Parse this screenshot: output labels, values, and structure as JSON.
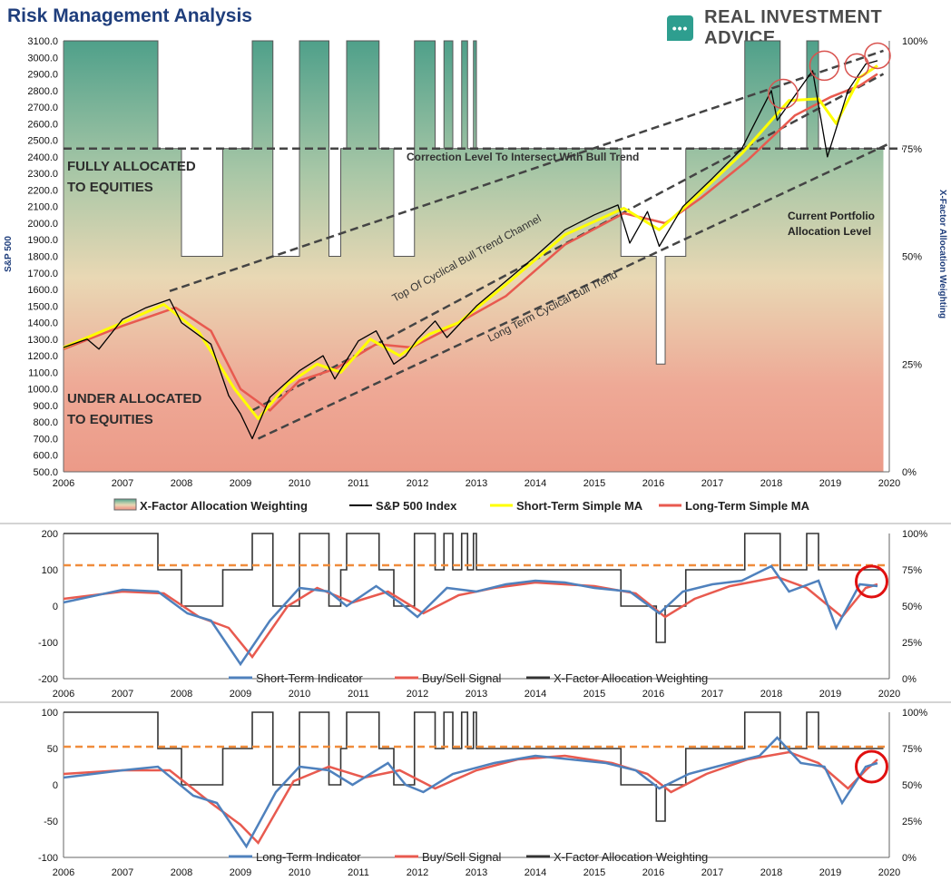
{
  "header": {
    "title": "Risk Management Analysis",
    "brand": "REAL INVESTMENT ADVICE",
    "brand_icon": "chat-bubble-icon"
  },
  "chart_data": [
    {
      "type": "line",
      "title": "Risk Management Analysis",
      "ylabel": "S&P 500",
      "y2label": "X-Factor Allocation Weighting",
      "xlim": [
        2006,
        2020
      ],
      "ylim": [
        500,
        3100
      ],
      "y2lim": [
        0,
        100
      ],
      "x_ticks": [
        "2006",
        "2007",
        "2008",
        "2009",
        "2010",
        "2011",
        "2012",
        "2013",
        "2014",
        "2015",
        "2016",
        "2017",
        "2018",
        "2019",
        "2020"
      ],
      "y_ticks": [
        "500.0",
        "600.0",
        "700.0",
        "800.0",
        "900.0",
        "1000.0",
        "1100.0",
        "1200.0",
        "1300.0",
        "1400.0",
        "1500.0",
        "1600.0",
        "1700.0",
        "1800.0",
        "1900.0",
        "2000.0",
        "2100.0",
        "2200.0",
        "2300.0",
        "2400.0",
        "2500.0",
        "2600.0",
        "2700.0",
        "2800.0",
        "2900.0",
        "3000.0",
        "3100.0"
      ],
      "y2_ticks": [
        "0%",
        "25%",
        "50%",
        "75%",
        "100%"
      ],
      "legend_position": "bottom",
      "legend": [
        "X-Factor Allocation Weighting",
        "S&P 500 Index",
        "Short-Term Simple MA",
        "Long-Term Simple MA"
      ],
      "annotations": [
        "FULLY ALLOCATED",
        "TO EQUITIES",
        "UNDER ALLOCATED",
        "TO EQUITIES",
        "Correction Level To Intersect With Bull Trend",
        "Top Of Cyclical Bull Trend Channel",
        "Long Term Cyclical Bull Trend",
        "Current Portfolio",
        "Allocation Level"
      ],
      "allocation_steps": [
        [
          2006,
          100
        ],
        [
          2007.6,
          75
        ],
        [
          2008,
          50
        ],
        [
          2008.7,
          75
        ],
        [
          2009.2,
          100
        ],
        [
          2009.4,
          100
        ],
        [
          2009.55,
          50
        ],
        [
          2010,
          100
        ],
        [
          2010.5,
          50
        ],
        [
          2010.7,
          75
        ],
        [
          2010.8,
          100
        ],
        [
          2011.35,
          75
        ],
        [
          2011.6,
          50
        ],
        [
          2011.95,
          100
        ],
        [
          2012.3,
          75
        ],
        [
          2012.45,
          100
        ],
        [
          2012.6,
          75
        ],
        [
          2012.75,
          100
        ],
        [
          2012.85,
          75
        ],
        [
          2012.95,
          100
        ],
        [
          2013,
          75
        ],
        [
          2015.45,
          50
        ],
        [
          2016.05,
          25
        ],
        [
          2016.2,
          50
        ],
        [
          2016.55,
          75
        ],
        [
          2017.55,
          100
        ],
        [
          2018.15,
          75
        ],
        [
          2018.6,
          100
        ],
        [
          2018.8,
          75
        ],
        [
          2019.9,
          75
        ]
      ],
      "series": [
        {
          "name": "S&P 500 Index",
          "color": "#000000",
          "values": [
            [
              2006,
              1250
            ],
            [
              2006.4,
              1300
            ],
            [
              2006.6,
              1240
            ],
            [
              2007,
              1420
            ],
            [
              2007.4,
              1490
            ],
            [
              2007.8,
              1540
            ],
            [
              2008,
              1400
            ],
            [
              2008.5,
              1270
            ],
            [
              2008.8,
              960
            ],
            [
              2009.0,
              850
            ],
            [
              2009.2,
              700
            ],
            [
              2009.5,
              950
            ],
            [
              2010,
              1110
            ],
            [
              2010.4,
              1200
            ],
            [
              2010.6,
              1060
            ],
            [
              2011,
              1290
            ],
            [
              2011.3,
              1350
            ],
            [
              2011.6,
              1150
            ],
            [
              2011.8,
              1200
            ],
            [
              2012,
              1300
            ],
            [
              2012.3,
              1410
            ],
            [
              2012.5,
              1310
            ],
            [
              2013,
              1500
            ],
            [
              2013.5,
              1650
            ],
            [
              2014,
              1800
            ],
            [
              2014.5,
              1960
            ],
            [
              2015,
              2050
            ],
            [
              2015.4,
              2110
            ],
            [
              2015.6,
              1880
            ],
            [
              2015.9,
              2070
            ],
            [
              2016.1,
              1860
            ],
            [
              2016.5,
              2100
            ],
            [
              2017,
              2270
            ],
            [
              2017.5,
              2450
            ],
            [
              2018,
              2800
            ],
            [
              2018.1,
              2620
            ],
            [
              2018.7,
              2920
            ],
            [
              2018.95,
              2400
            ],
            [
              2019.3,
              2800
            ],
            [
              2019.6,
              2960
            ],
            [
              2019.8,
              2980
            ]
          ]
        },
        {
          "name": "Short-Term Simple MA",
          "color": "#ffff00",
          "values": [
            [
              2006,
              1250
            ],
            [
              2007,
              1400
            ],
            [
              2007.7,
              1510
            ],
            [
              2008.3,
              1340
            ],
            [
              2008.9,
              1000
            ],
            [
              2009.3,
              820
            ],
            [
              2009.8,
              1030
            ],
            [
              2010.3,
              1150
            ],
            [
              2010.7,
              1100
            ],
            [
              2011.2,
              1300
            ],
            [
              2011.7,
              1200
            ],
            [
              2012.2,
              1330
            ],
            [
              2012.7,
              1400
            ],
            [
              2013.5,
              1630
            ],
            [
              2014.5,
              1930
            ],
            [
              2015.5,
              2090
            ],
            [
              2016.1,
              1960
            ],
            [
              2016.7,
              2150
            ],
            [
              2017.5,
              2420
            ],
            [
              2018.3,
              2740
            ],
            [
              2018.8,
              2750
            ],
            [
              2019.1,
              2600
            ],
            [
              2019.5,
              2880
            ],
            [
              2019.8,
              2950
            ]
          ]
        },
        {
          "name": "Long-Term Simple MA",
          "color": "#e85a4f",
          "values": [
            [
              2006,
              1240
            ],
            [
              2007,
              1380
            ],
            [
              2007.9,
              1490
            ],
            [
              2008.5,
              1350
            ],
            [
              2009,
              1000
            ],
            [
              2009.5,
              870
            ],
            [
              2010,
              1050
            ],
            [
              2010.6,
              1120
            ],
            [
              2011.3,
              1270
            ],
            [
              2011.9,
              1250
            ],
            [
              2012.5,
              1360
            ],
            [
              2013.5,
              1560
            ],
            [
              2014.5,
              1870
            ],
            [
              2015.5,
              2060
            ],
            [
              2016.2,
              2000
            ],
            [
              2016.8,
              2150
            ],
            [
              2017.6,
              2380
            ],
            [
              2018.4,
              2650
            ],
            [
              2019.0,
              2760
            ],
            [
              2019.5,
              2830
            ],
            [
              2019.8,
              2900
            ]
          ]
        }
      ]
    },
    {
      "type": "line",
      "xlim": [
        2006,
        2020
      ],
      "ylim": [
        -200,
        200
      ],
      "y2lim": [
        0,
        100
      ],
      "x_ticks": [
        "2006",
        "2007",
        "2008",
        "2009",
        "2010",
        "2011",
        "2012",
        "2013",
        "2014",
        "2015",
        "2016",
        "2017",
        "2018",
        "2019",
        "2020"
      ],
      "y_ticks": [
        "-200",
        "-100",
        "0",
        "100",
        "200"
      ],
      "y2_ticks": [
        "0%",
        "25%",
        "50%",
        "75%",
        "100%"
      ],
      "legend_position": "bottom",
      "legend": [
        "Short-Term Indicator",
        "Buy/Sell Signal",
        "X-Factor Allocation Weighting"
      ],
      "reference_level": 75,
      "series": [
        {
          "name": "Short-Term Indicator",
          "color": "#4f81bd",
          "values": [
            [
              2006,
              10
            ],
            [
              2007,
              45
            ],
            [
              2007.6,
              40
            ],
            [
              2008.1,
              -20
            ],
            [
              2008.5,
              -40
            ],
            [
              2009,
              -160
            ],
            [
              2009.5,
              -40
            ],
            [
              2010,
              50
            ],
            [
              2010.5,
              40
            ],
            [
              2010.8,
              0
            ],
            [
              2011.3,
              55
            ],
            [
              2011.7,
              10
            ],
            [
              2012,
              -30
            ],
            [
              2012.5,
              50
            ],
            [
              2013,
              40
            ],
            [
              2013.5,
              60
            ],
            [
              2014,
              70
            ],
            [
              2014.5,
              65
            ],
            [
              2015,
              50
            ],
            [
              2015.6,
              40
            ],
            [
              2016.1,
              -20
            ],
            [
              2016.5,
              40
            ],
            [
              2017,
              60
            ],
            [
              2017.5,
              70
            ],
            [
              2018,
              110
            ],
            [
              2018.3,
              40
            ],
            [
              2018.8,
              70
            ],
            [
              2019.1,
              -60
            ],
            [
              2019.5,
              60
            ],
            [
              2019.8,
              55
            ]
          ]
        },
        {
          "name": "Buy/Sell Signal",
          "color": "#e85a4f",
          "values": [
            [
              2006,
              20
            ],
            [
              2007,
              40
            ],
            [
              2007.7,
              35
            ],
            [
              2008.3,
              -30
            ],
            [
              2008.8,
              -60
            ],
            [
              2009.2,
              -140
            ],
            [
              2009.8,
              0
            ],
            [
              2010.3,
              50
            ],
            [
              2010.9,
              10
            ],
            [
              2011.5,
              40
            ],
            [
              2012.1,
              -20
            ],
            [
              2012.7,
              30
            ],
            [
              2013.3,
              50
            ],
            [
              2014,
              65
            ],
            [
              2015,
              55
            ],
            [
              2015.7,
              35
            ],
            [
              2016.2,
              -30
            ],
            [
              2016.7,
              20
            ],
            [
              2017.3,
              55
            ],
            [
              2018.1,
              80
            ],
            [
              2018.6,
              50
            ],
            [
              2019.2,
              -30
            ],
            [
              2019.6,
              50
            ],
            [
              2019.8,
              60
            ]
          ]
        },
        {
          "name": "X-Factor Allocation Weighting",
          "color": "#333333",
          "values": "allocation_steps"
        }
      ]
    },
    {
      "type": "line",
      "xlim": [
        2006,
        2020
      ],
      "ylim": [
        -100,
        100
      ],
      "y2lim": [
        0,
        100
      ],
      "x_ticks": [
        "2006",
        "2007",
        "2008",
        "2009",
        "2010",
        "2011",
        "2012",
        "2013",
        "2014",
        "2015",
        "2016",
        "2017",
        "2018",
        "2019",
        "2020"
      ],
      "y_ticks": [
        "-100",
        "-50",
        "0",
        "50",
        "100"
      ],
      "y2_ticks": [
        "0%",
        "25%",
        "50%",
        "75%",
        "100%"
      ],
      "legend_position": "bottom",
      "legend": [
        "Long-Term Indicator",
        "Buy/Sell Signal",
        "X-Factor Allocation Weighting"
      ],
      "reference_level": 75,
      "series": [
        {
          "name": "Long-Term Indicator",
          "color": "#4f81bd",
          "values": [
            [
              2006,
              10
            ],
            [
              2007,
              20
            ],
            [
              2007.6,
              25
            ],
            [
              2008.2,
              -15
            ],
            [
              2008.6,
              -25
            ],
            [
              2009.1,
              -85
            ],
            [
              2009.6,
              -10
            ],
            [
              2010,
              25
            ],
            [
              2010.5,
              20
            ],
            [
              2010.9,
              0
            ],
            [
              2011.5,
              30
            ],
            [
              2011.8,
              0
            ],
            [
              2012.1,
              -10
            ],
            [
              2012.6,
              15
            ],
            [
              2013.3,
              30
            ],
            [
              2014,
              40
            ],
            [
              2014.6,
              35
            ],
            [
              2015.2,
              30
            ],
            [
              2015.7,
              20
            ],
            [
              2016.1,
              -5
            ],
            [
              2016.6,
              15
            ],
            [
              2017.3,
              30
            ],
            [
              2017.8,
              40
            ],
            [
              2018.1,
              65
            ],
            [
              2018.5,
              30
            ],
            [
              2018.9,
              25
            ],
            [
              2019.2,
              -25
            ],
            [
              2019.6,
              25
            ],
            [
              2019.8,
              30
            ]
          ]
        },
        {
          "name": "Buy/Sell Signal",
          "color": "#e85a4f",
          "values": [
            [
              2006,
              15
            ],
            [
              2007,
              20
            ],
            [
              2007.8,
              20
            ],
            [
              2008.5,
              -25
            ],
            [
              2009.0,
              -55
            ],
            [
              2009.3,
              -80
            ],
            [
              2009.9,
              5
            ],
            [
              2010.5,
              25
            ],
            [
              2011.1,
              10
            ],
            [
              2011.7,
              20
            ],
            [
              2012.3,
              -5
            ],
            [
              2013,
              20
            ],
            [
              2013.7,
              35
            ],
            [
              2014.5,
              40
            ],
            [
              2015.3,
              30
            ],
            [
              2015.9,
              15
            ],
            [
              2016.3,
              -10
            ],
            [
              2016.9,
              15
            ],
            [
              2017.6,
              35
            ],
            [
              2018.3,
              45
            ],
            [
              2018.8,
              30
            ],
            [
              2019.3,
              -5
            ],
            [
              2019.6,
              20
            ],
            [
              2019.8,
              35
            ]
          ]
        },
        {
          "name": "X-Factor Allocation Weighting",
          "color": "#333333",
          "values": "allocation_steps"
        }
      ]
    }
  ]
}
